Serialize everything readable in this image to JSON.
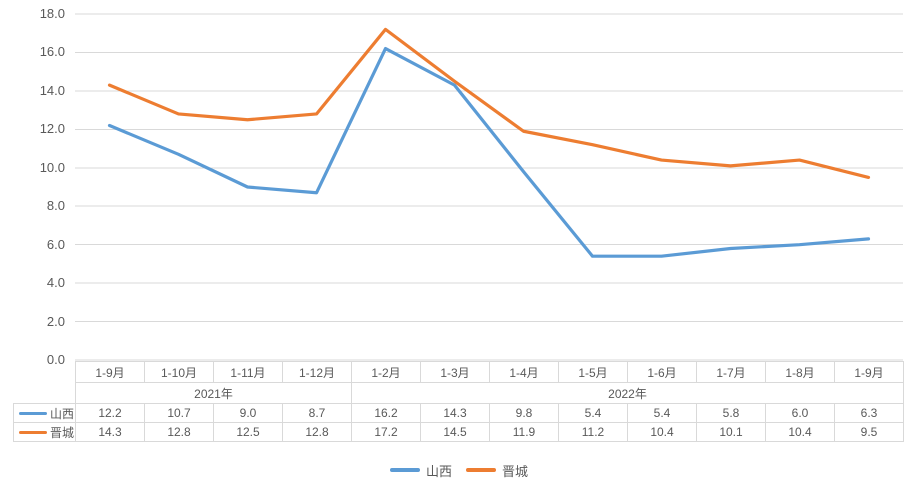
{
  "chart_data": {
    "type": "line",
    "title": "",
    "xlabel": "",
    "ylabel": "",
    "categories": [
      "1-9月",
      "1-10月",
      "1-11月",
      "1-12月",
      "1-2月",
      "1-3月",
      "1-4月",
      "1-5月",
      "1-6月",
      "1-7月",
      "1-8月",
      "1-9月"
    ],
    "year_groups": [
      {
        "label": "2021年",
        "span": 4
      },
      {
        "label": "2022年",
        "span": 8
      }
    ],
    "series": [
      {
        "name": "山西",
        "color": "#5B9BD5",
        "values": [
          12.2,
          10.7,
          9.0,
          8.7,
          16.2,
          14.3,
          9.8,
          5.4,
          5.4,
          5.8,
          6.0,
          6.3
        ]
      },
      {
        "name": "晋城",
        "color": "#ED7D31",
        "values": [
          14.3,
          12.8,
          12.5,
          12.8,
          17.2,
          14.5,
          11.9,
          11.2,
          10.4,
          10.1,
          10.4,
          9.5
        ]
      }
    ],
    "ylim": [
      0.0,
      18.0
    ],
    "ytick_step": 2.0,
    "ytick_labels": [
      "0.0",
      "2.0",
      "4.0",
      "6.0",
      "8.0",
      "10.0",
      "12.0",
      "14.0",
      "16.0",
      "18.0"
    ],
    "grid": true,
    "legend_position": "bottom",
    "data_table_shown": true,
    "value_decimals": 1
  },
  "colors": {
    "gridline": "#D9D9D9",
    "table_border": "#D9D9D9",
    "text": "#595959",
    "background": "#FFFFFF"
  }
}
